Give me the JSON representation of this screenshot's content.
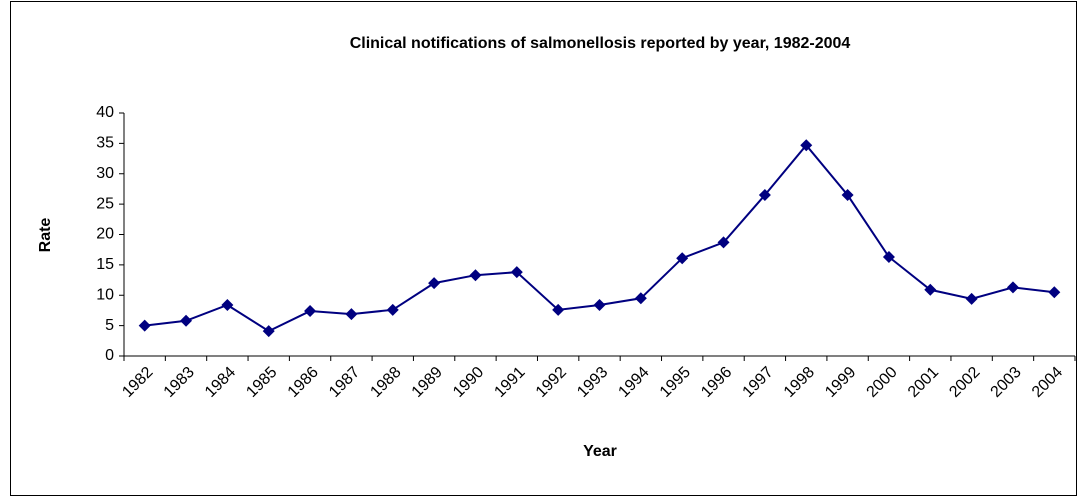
{
  "chart_data": {
    "type": "line",
    "title": "Clinical notifications of salmonellosis reported by year, 1982-2004",
    "x_label": "Year",
    "y_label": "Rate",
    "categories": [
      "1982",
      "1983",
      "1984",
      "1985",
      "1986",
      "1987",
      "1988",
      "1989",
      "1990",
      "1991",
      "1992",
      "1993",
      "1994",
      "1995",
      "1996",
      "1997",
      "1998",
      "1999",
      "2000",
      "2001",
      "2002",
      "2003",
      "2004"
    ],
    "series": [
      {
        "name": "Rate",
        "color": "#000080",
        "values": [
          5,
          5.8,
          8.4,
          4.1,
          7.4,
          6.9,
          7.6,
          12,
          13.3,
          13.8,
          7.6,
          8.4,
          9.5,
          16.1,
          18.7,
          26.5,
          34.7,
          26.5,
          16.3,
          10.9,
          9.4,
          11.3,
          10.5
        ]
      }
    ],
    "ylim": [
      0,
      40
    ],
    "yticks": [
      0,
      5,
      10,
      15,
      20,
      25,
      30,
      35,
      40
    ],
    "grid": false,
    "legend": false
  }
}
